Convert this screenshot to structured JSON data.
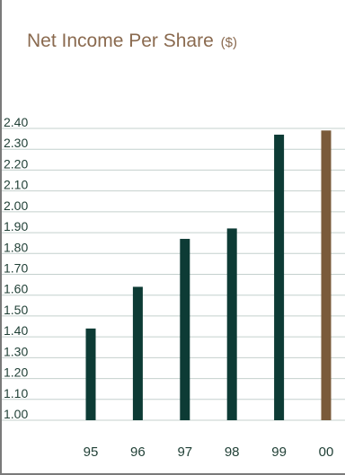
{
  "chart_data": {
    "type": "bar",
    "title": "Net Income Per Share",
    "title_unit": "($)",
    "categories": [
      "95",
      "96",
      "97",
      "98",
      "99",
      "00"
    ],
    "values": [
      1.44,
      1.64,
      1.87,
      1.92,
      2.37,
      2.39
    ],
    "bar_colors": [
      "#0d3b35",
      "#0d3b35",
      "#0d3b35",
      "#0d3b35",
      "#0d3b35",
      "#7a5a3a"
    ],
    "ylim": [
      1.0,
      2.4
    ],
    "yticks": [
      "1.00",
      "1.10",
      "1.20",
      "1.30",
      "1.40",
      "1.50",
      "1.60",
      "1.70",
      "1.80",
      "1.90",
      "2.00",
      "2.10",
      "2.20",
      "2.30",
      "2.40"
    ],
    "grid": true,
    "grid_color": "#c4d0cd"
  }
}
